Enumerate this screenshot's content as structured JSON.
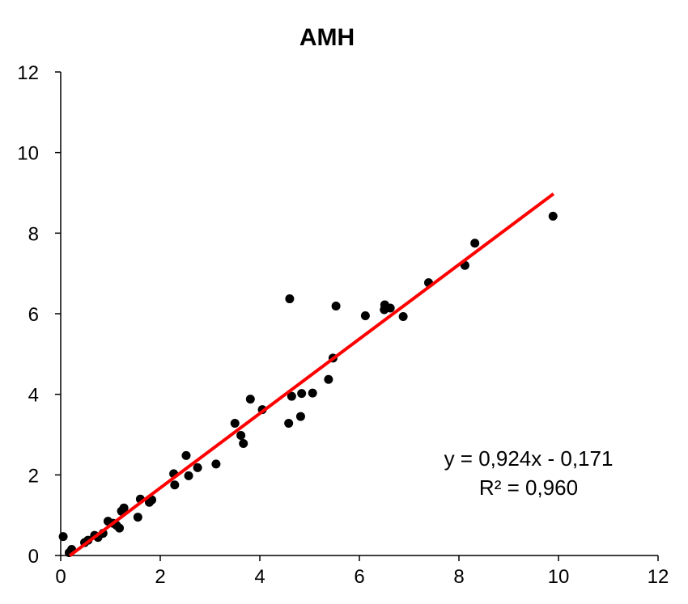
{
  "chart_data": {
    "type": "scatter",
    "title": "AMH",
    "xlabel": "",
    "ylabel": "",
    "xlim": [
      0,
      12
    ],
    "ylim": [
      0,
      12
    ],
    "x_ticks": [
      "0",
      "2",
      "4",
      "6",
      "8",
      "10",
      "12"
    ],
    "y_ticks": [
      "0",
      "2",
      "4",
      "6",
      "8",
      "10",
      "12"
    ],
    "grid": false,
    "legend": "none",
    "point_color": "#000000",
    "trendline": {
      "slope": 0.924,
      "intercept": -0.171,
      "x_range": [
        0.18,
        9.9
      ],
      "color": "#ff0000",
      "equation_text": "y = 0,924x - 0,171",
      "r2_text": "R² = 0,960"
    },
    "series": [
      {
        "points": [
          [
            0.05,
            0.47
          ],
          [
            0.17,
            0.07
          ],
          [
            0.22,
            0.15
          ],
          [
            0.48,
            0.32
          ],
          [
            0.55,
            0.38
          ],
          [
            0.68,
            0.5
          ],
          [
            0.75,
            0.45
          ],
          [
            0.85,
            0.55
          ],
          [
            0.95,
            0.85
          ],
          [
            1.05,
            0.8
          ],
          [
            1.12,
            0.75
          ],
          [
            1.18,
            0.68
          ],
          [
            1.22,
            1.1
          ],
          [
            1.27,
            1.18
          ],
          [
            1.55,
            0.95
          ],
          [
            1.6,
            1.4
          ],
          [
            1.78,
            1.32
          ],
          [
            1.83,
            1.38
          ],
          [
            2.27,
            2.03
          ],
          [
            2.29,
            1.75
          ],
          [
            2.52,
            2.48
          ],
          [
            2.57,
            1.98
          ],
          [
            2.75,
            2.18
          ],
          [
            3.12,
            2.27
          ],
          [
            3.5,
            3.28
          ],
          [
            3.62,
            2.98
          ],
          [
            3.67,
            2.78
          ],
          [
            3.81,
            3.88
          ],
          [
            4.05,
            3.62
          ],
          [
            4.58,
            3.28
          ],
          [
            4.6,
            6.37
          ],
          [
            4.64,
            3.95
          ],
          [
            4.82,
            3.45
          ],
          [
            4.84,
            4.02
          ],
          [
            5.06,
            4.03
          ],
          [
            5.38,
            4.37
          ],
          [
            5.47,
            4.9
          ],
          [
            5.53,
            6.19
          ],
          [
            6.12,
            5.95
          ],
          [
            6.5,
            6.1
          ],
          [
            6.51,
            6.22
          ],
          [
            6.62,
            6.14
          ],
          [
            6.88,
            5.93
          ],
          [
            7.39,
            6.77
          ],
          [
            8.12,
            7.2
          ],
          [
            8.32,
            7.75
          ],
          [
            9.89,
            8.42
          ]
        ]
      }
    ]
  }
}
